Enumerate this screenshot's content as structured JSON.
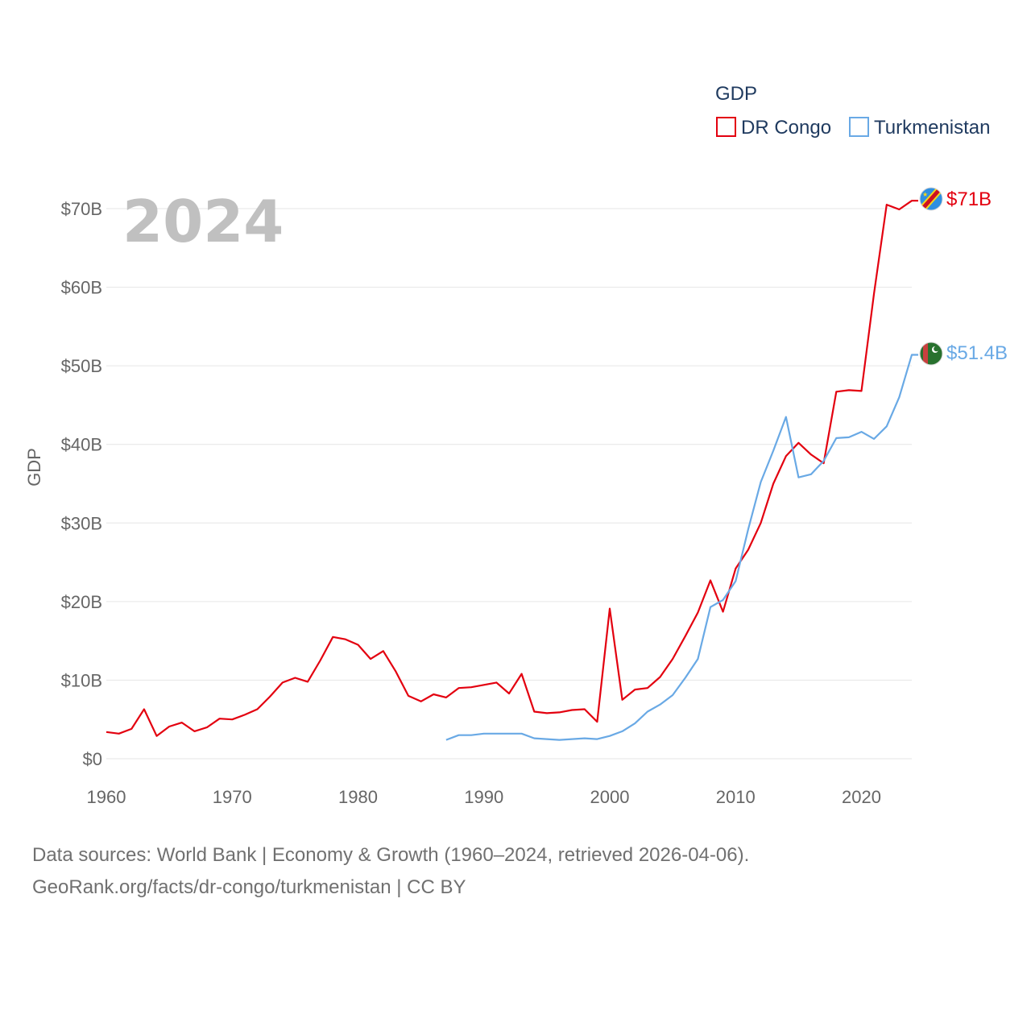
{
  "chart_data": {
    "type": "line",
    "title": "",
    "legend_title": "GDP",
    "legend_position": "top-right",
    "current_year": "2024",
    "xlabel": "",
    "ylabel": "GDP",
    "xlim": [
      1960,
      2024
    ],
    "ylim": [
      0,
      70
    ],
    "x_ticks": [
      1960,
      1970,
      1980,
      1990,
      2000,
      2010,
      2020
    ],
    "y_ticks": [
      {
        "value": 0,
        "label": "$0"
      },
      {
        "value": 10,
        "label": "$10B"
      },
      {
        "value": 20,
        "label": "$20B"
      },
      {
        "value": 30,
        "label": "$30B"
      },
      {
        "value": 40,
        "label": "$40B"
      },
      {
        "value": 50,
        "label": "$50B"
      },
      {
        "value": 60,
        "label": "$60B"
      },
      {
        "value": 70,
        "label": "$70B"
      }
    ],
    "grid": true,
    "series": [
      {
        "name": "DR Congo",
        "color": "#e3000f",
        "end_label": "$71B",
        "flag": "dr-congo-flag-icon",
        "x": [
          1960,
          1961,
          1962,
          1963,
          1964,
          1965,
          1966,
          1967,
          1968,
          1969,
          1970,
          1971,
          1972,
          1973,
          1974,
          1975,
          1976,
          1977,
          1978,
          1979,
          1980,
          1981,
          1982,
          1983,
          1984,
          1985,
          1986,
          1987,
          1988,
          1989,
          1990,
          1991,
          1992,
          1993,
          1994,
          1995,
          1996,
          1997,
          1998,
          1999,
          2000,
          2001,
          2002,
          2003,
          2004,
          2005,
          2006,
          2007,
          2008,
          2009,
          2010,
          2011,
          2012,
          2013,
          2014,
          2015,
          2016,
          2017,
          2018,
          2019,
          2020,
          2021,
          2022,
          2023,
          2024
        ],
        "values": [
          3.4,
          3.2,
          3.8,
          6.3,
          2.9,
          4.1,
          4.6,
          3.5,
          4.0,
          5.1,
          5.0,
          5.6,
          6.3,
          7.9,
          9.7,
          10.3,
          9.8,
          12.5,
          15.5,
          15.2,
          14.5,
          12.7,
          13.7,
          11.1,
          8.0,
          7.3,
          8.2,
          7.8,
          9.0,
          9.1,
          9.4,
          9.7,
          8.3,
          10.8,
          6.0,
          5.8,
          5.9,
          6.2,
          6.3,
          4.7,
          19.1,
          7.5,
          8.8,
          9.0,
          10.4,
          12.7,
          15.6,
          18.6,
          22.7,
          18.7,
          24.2,
          26.6,
          30.0,
          35.0,
          38.5,
          40.2,
          38.7,
          37.6,
          46.7,
          46.9,
          46.8,
          59.2,
          70.5,
          69.9,
          71.0
        ]
      },
      {
        "name": "Turkmenistan",
        "color": "#69a9e5",
        "end_label": "$51.4B",
        "flag": "turkmenistan-flag-icon",
        "x": [
          1987,
          1988,
          1989,
          1990,
          1991,
          1992,
          1993,
          1994,
          1995,
          1996,
          1997,
          1998,
          1999,
          2000,
          2001,
          2002,
          2003,
          2004,
          2005,
          2006,
          2007,
          2008,
          2009,
          2010,
          2011,
          2012,
          2013,
          2014,
          2015,
          2016,
          2017,
          2018,
          2019,
          2020,
          2021,
          2022,
          2023,
          2024
        ],
        "values": [
          2.4,
          3.0,
          3.0,
          3.2,
          3.2,
          3.2,
          3.2,
          2.6,
          2.5,
          2.4,
          2.5,
          2.6,
          2.5,
          2.9,
          3.5,
          4.5,
          6.0,
          6.9,
          8.1,
          10.3,
          12.7,
          19.3,
          20.2,
          22.6,
          29.2,
          35.2,
          39.2,
          43.5,
          35.8,
          36.2,
          37.9,
          40.8,
          40.9,
          41.6,
          40.7,
          42.3,
          46.0,
          51.4
        ]
      }
    ]
  },
  "footer": {
    "line1": "Data sources: World Bank | Economy & Growth (1960–2024, retrieved 2026-04-06).",
    "line2": "GeoRank.org/facts/dr-congo/turkmenistan | CC BY"
  }
}
